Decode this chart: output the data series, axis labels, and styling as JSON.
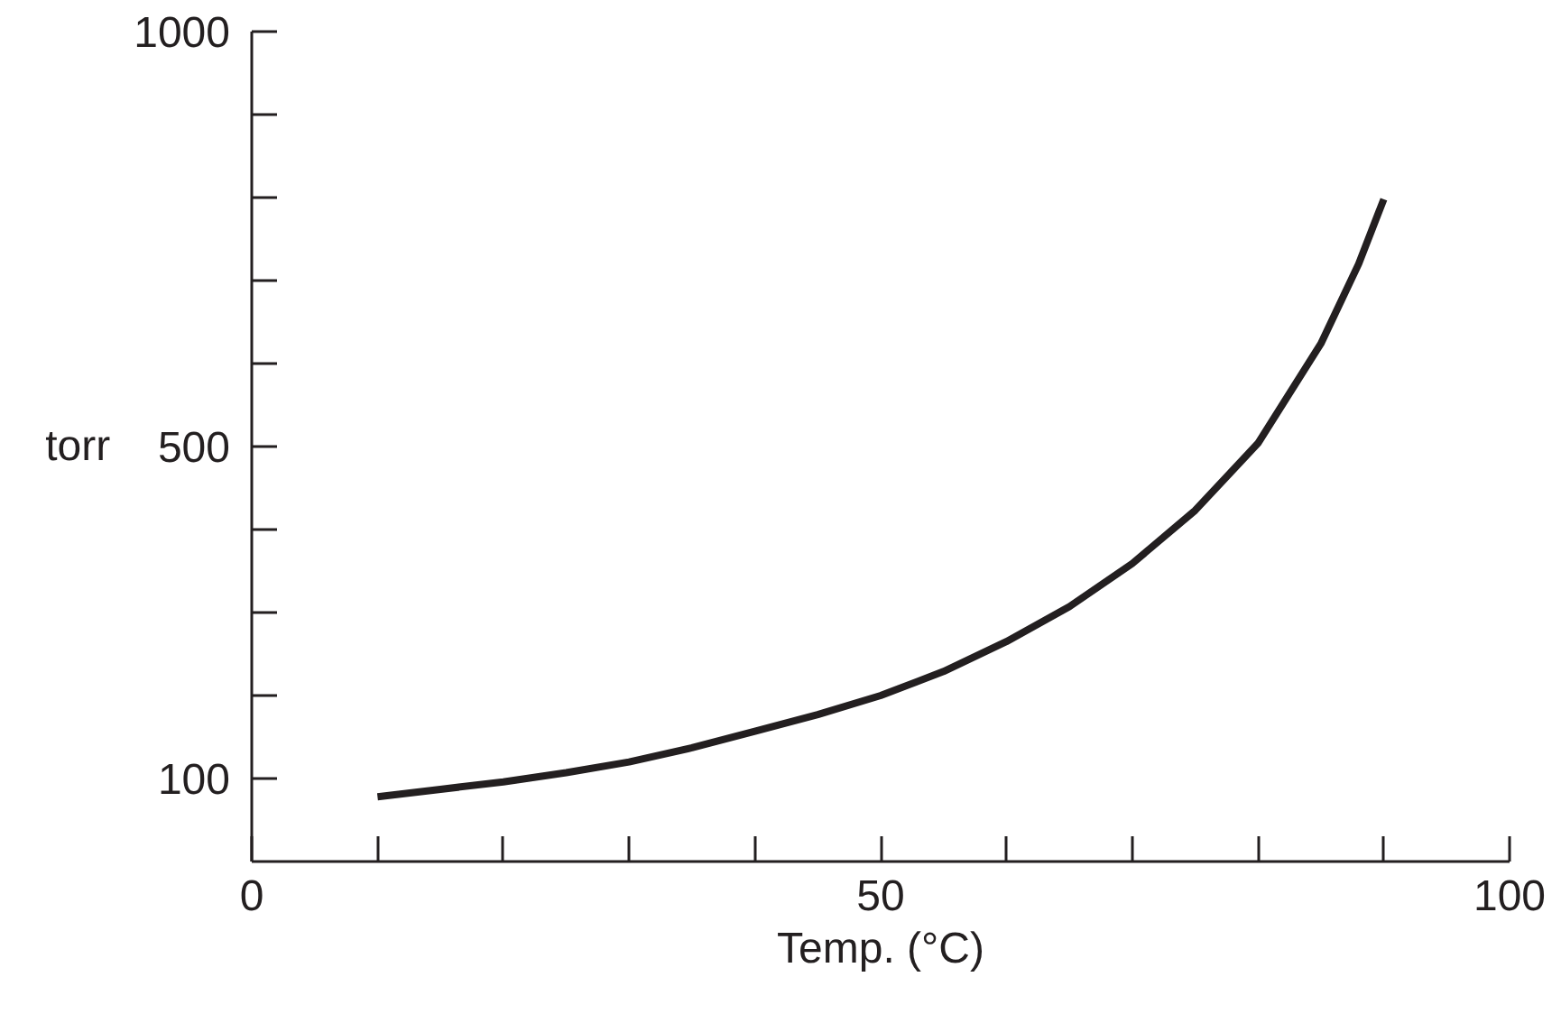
{
  "chart_data": {
    "type": "line",
    "xlabel": "Temp. (°C)",
    "ylabel": "torr",
    "x": [
      10,
      15,
      20,
      25,
      30,
      35,
      40,
      45,
      50,
      55,
      60,
      65,
      70,
      75,
      80,
      85,
      88,
      90
    ],
    "series": [
      {
        "color": "#231f20",
        "values": [
          78,
          87,
          96,
          107,
          120,
          137,
          157,
          177,
          200,
          229,
          265,
          307,
          359,
          423,
          504,
          624,
          720,
          798
        ]
      }
    ],
    "xlim": [
      0,
      100
    ],
    "ylim": [
      0,
      1000
    ],
    "xticks": [
      0,
      {
        "value": 10,
        "label": null
      },
      {
        "value": 20,
        "label": null
      },
      {
        "value": 30,
        "label": null
      },
      {
        "value": 40,
        "label": null
      },
      50,
      {
        "value": 60,
        "label": null
      },
      {
        "value": 70,
        "label": null
      },
      {
        "value": 80,
        "label": null
      },
      {
        "value": 90,
        "label": null
      },
      100
    ],
    "yticks": [
      100,
      {
        "value": 200,
        "label": null
      },
      {
        "value": 300,
        "label": null
      },
      {
        "value": 400,
        "label": null
      },
      500,
      {
        "value": 600,
        "label": null
      },
      {
        "value": 700,
        "label": null
      },
      {
        "value": 800,
        "label": null
      },
      {
        "value": 900,
        "label": null
      },
      1000
    ],
    "grid": false,
    "marker": "none",
    "line_style": "solid"
  }
}
